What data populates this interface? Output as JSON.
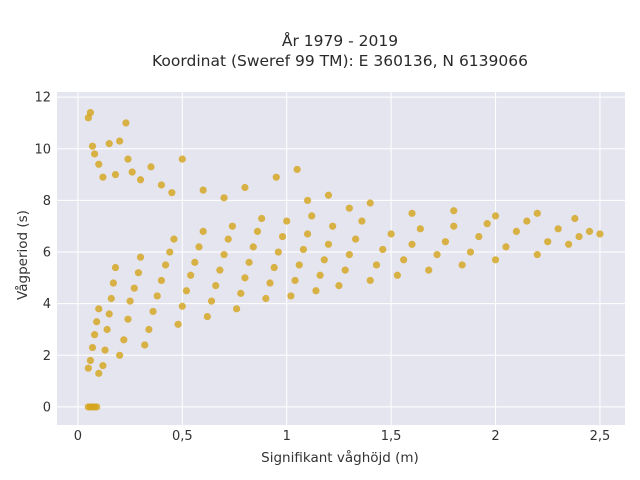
{
  "chart_data": {
    "type": "scatter",
    "title_line1": "År 1979 - 2019",
    "title_line2": "Koordinat (Sweref 99 TM): E 360136, N 6139066",
    "xlabel": "Signifikant våghöjd (m)",
    "ylabel": "Vågperiod (s)",
    "xlim": [
      -0.1,
      2.62
    ],
    "ylim": [
      -0.7,
      12.2
    ],
    "x_ticks": [
      0,
      0.5,
      1,
      1.5,
      2,
      2.5
    ],
    "x_tick_labels": [
      "0",
      "0,5",
      "1",
      "1,5",
      "2",
      "2,5"
    ],
    "y_ticks": [
      0,
      2,
      4,
      6,
      8,
      10,
      12
    ],
    "y_tick_labels": [
      "0",
      "2",
      "4",
      "6",
      "8",
      "10",
      "12"
    ],
    "grid": true,
    "colors": {
      "marker": "#d4a51e",
      "plot_bg": "#e5e5f0",
      "grid": "#ffffff"
    },
    "points": [
      [
        0.05,
        1.5
      ],
      [
        0.06,
        1.8
      ],
      [
        0.07,
        2.3
      ],
      [
        0.08,
        2.8
      ],
      [
        0.09,
        3.3
      ],
      [
        0.1,
        3.8
      ],
      [
        0.1,
        1.3
      ],
      [
        0.12,
        1.6
      ],
      [
        0.13,
        2.2
      ],
      [
        0.14,
        3.0
      ],
      [
        0.15,
        3.6
      ],
      [
        0.16,
        4.2
      ],
      [
        0.17,
        4.8
      ],
      [
        0.18,
        5.4
      ],
      [
        0.2,
        2.0
      ],
      [
        0.22,
        2.6
      ],
      [
        0.24,
        3.4
      ],
      [
        0.25,
        4.1
      ],
      [
        0.27,
        4.6
      ],
      [
        0.29,
        5.2
      ],
      [
        0.3,
        5.8
      ],
      [
        0.32,
        2.4
      ],
      [
        0.34,
        3.0
      ],
      [
        0.36,
        3.7
      ],
      [
        0.38,
        4.3
      ],
      [
        0.4,
        4.9
      ],
      [
        0.42,
        5.5
      ],
      [
        0.44,
        6.0
      ],
      [
        0.46,
        6.5
      ],
      [
        0.48,
        3.2
      ],
      [
        0.5,
        3.9
      ],
      [
        0.52,
        4.5
      ],
      [
        0.54,
        5.1
      ],
      [
        0.56,
        5.6
      ],
      [
        0.58,
        6.2
      ],
      [
        0.6,
        6.8
      ],
      [
        0.62,
        3.5
      ],
      [
        0.64,
        4.1
      ],
      [
        0.66,
        4.7
      ],
      [
        0.68,
        5.3
      ],
      [
        0.7,
        5.9
      ],
      [
        0.72,
        6.5
      ],
      [
        0.74,
        7.0
      ],
      [
        0.76,
        3.8
      ],
      [
        0.78,
        4.4
      ],
      [
        0.8,
        5.0
      ],
      [
        0.82,
        5.6
      ],
      [
        0.84,
        6.2
      ],
      [
        0.86,
        6.8
      ],
      [
        0.88,
        7.3
      ],
      [
        0.9,
        4.2
      ],
      [
        0.92,
        4.8
      ],
      [
        0.94,
        5.4
      ],
      [
        0.96,
        6.0
      ],
      [
        0.98,
        6.6
      ],
      [
        1.0,
        7.2
      ],
      [
        1.02,
        4.3
      ],
      [
        1.04,
        4.9
      ],
      [
        1.06,
        5.5
      ],
      [
        1.08,
        6.1
      ],
      [
        1.1,
        6.7
      ],
      [
        1.12,
        7.4
      ],
      [
        1.14,
        4.5
      ],
      [
        1.16,
        5.1
      ],
      [
        1.18,
        5.7
      ],
      [
        1.2,
        6.3
      ],
      [
        1.22,
        7.0
      ],
      [
        1.25,
        4.7
      ],
      [
        1.28,
        5.3
      ],
      [
        1.3,
        5.9
      ],
      [
        1.33,
        6.5
      ],
      [
        1.36,
        7.2
      ],
      [
        1.4,
        4.9
      ],
      [
        1.43,
        5.5
      ],
      [
        1.46,
        6.1
      ],
      [
        1.5,
        6.7
      ],
      [
        1.53,
        5.1
      ],
      [
        1.56,
        5.7
      ],
      [
        1.6,
        6.3
      ],
      [
        1.64,
        6.9
      ],
      [
        1.68,
        5.3
      ],
      [
        1.72,
        5.9
      ],
      [
        1.76,
        6.4
      ],
      [
        1.8,
        7.0
      ],
      [
        1.84,
        5.5
      ],
      [
        1.88,
        6.0
      ],
      [
        1.92,
        6.6
      ],
      [
        1.96,
        7.1
      ],
      [
        2.0,
        5.7
      ],
      [
        2.05,
        6.2
      ],
      [
        2.1,
        6.8
      ],
      [
        2.15,
        7.2
      ],
      [
        2.2,
        5.9
      ],
      [
        2.25,
        6.4
      ],
      [
        2.3,
        6.9
      ],
      [
        2.35,
        6.3
      ],
      [
        2.4,
        6.6
      ],
      [
        2.45,
        6.8
      ],
      [
        2.5,
        6.7
      ],
      [
        2.38,
        7.3
      ],
      [
        0.05,
        0.0
      ],
      [
        0.06,
        0.0
      ],
      [
        0.07,
        0.0
      ],
      [
        0.08,
        0.0
      ],
      [
        0.09,
        0.0
      ],
      [
        0.05,
        11.2
      ],
      [
        0.06,
        11.4
      ],
      [
        0.07,
        10.1
      ],
      [
        0.08,
        9.8
      ],
      [
        0.1,
        9.4
      ],
      [
        0.12,
        8.9
      ],
      [
        0.15,
        10.2
      ],
      [
        0.18,
        9.0
      ],
      [
        0.2,
        10.3
      ],
      [
        0.23,
        11.0
      ],
      [
        0.24,
        9.6
      ],
      [
        0.26,
        9.1
      ],
      [
        0.3,
        8.8
      ],
      [
        0.35,
        9.3
      ],
      [
        0.4,
        8.6
      ],
      [
        0.45,
        8.3
      ],
      [
        0.5,
        9.6
      ],
      [
        0.6,
        8.4
      ],
      [
        0.7,
        8.1
      ],
      [
        0.8,
        8.5
      ],
      [
        0.95,
        8.9
      ],
      [
        1.05,
        9.2
      ],
      [
        1.1,
        8.0
      ],
      [
        1.2,
        8.2
      ],
      [
        1.3,
        7.7
      ],
      [
        1.4,
        7.9
      ],
      [
        1.6,
        7.5
      ],
      [
        1.8,
        7.6
      ],
      [
        2.0,
        7.4
      ],
      [
        2.2,
        7.5
      ]
    ]
  }
}
